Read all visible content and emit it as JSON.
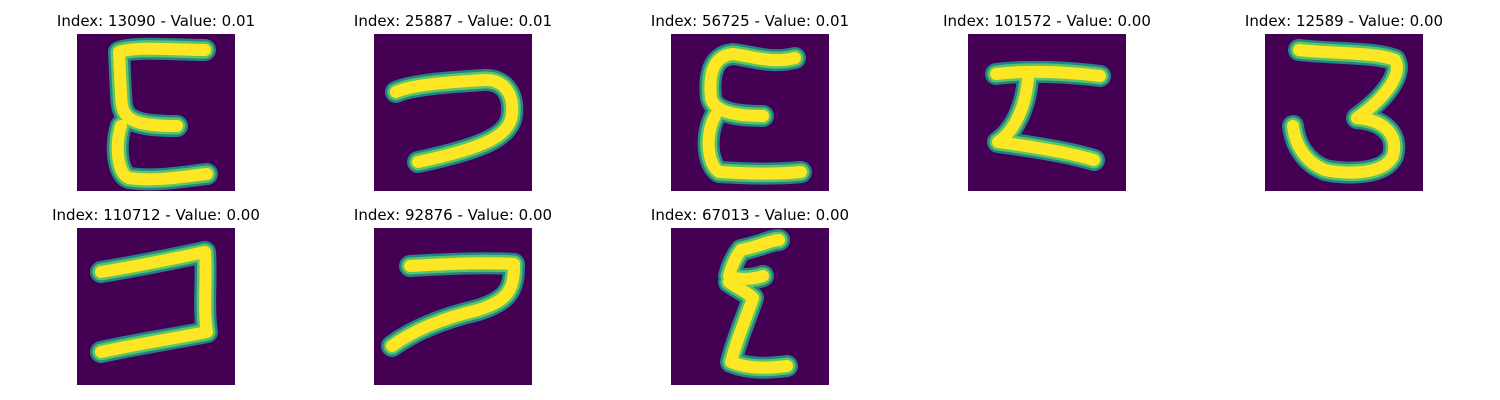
{
  "colors": {
    "background": "#440154",
    "stroke_outer": "#21918c",
    "stroke_mid": "#5ec962",
    "stroke_core": "#fde725"
  },
  "panels": [
    {
      "title": "Index: 13090 - Value: 0.01",
      "glyph": "E-tall"
    },
    {
      "title": "Index: 25887 - Value: 0.01",
      "glyph": "hook-seven"
    },
    {
      "title": "Index: 56725 - Value: 0.01",
      "glyph": "E-curly"
    },
    {
      "title": "Index: 101572 - Value: 0.00",
      "glyph": "Z-thick"
    },
    {
      "title": "Index: 12589 - Value: 0.00",
      "glyph": "three"
    },
    {
      "title": "Index: 110712 - Value: 0.00",
      "glyph": "bold-seven"
    },
    {
      "title": "Index: 92876 - Value: 0.00",
      "glyph": "long-seven"
    },
    {
      "title": "Index: 67013 - Value: 0.00",
      "glyph": "script-z"
    }
  ]
}
